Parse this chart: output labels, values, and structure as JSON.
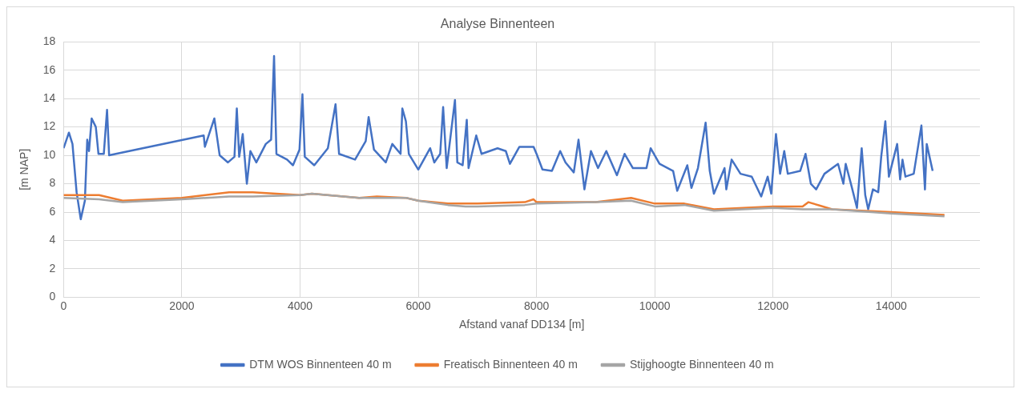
{
  "chart_data": {
    "type": "line",
    "title": "Analyse Binnenteen",
    "xlabel": "Afstand vanaf DD134 [m]",
    "ylabel": "[m NAP]",
    "xlim": [
      0,
      15500
    ],
    "xticks": [
      0,
      2000,
      4000,
      6000,
      8000,
      10000,
      12000,
      14000
    ],
    "ylim": [
      0,
      18
    ],
    "yticks": [
      0,
      2,
      4,
      6,
      8,
      10,
      12,
      14,
      16,
      18
    ],
    "grid": true,
    "legend": "bottom",
    "marker": "none",
    "line_style": "solid",
    "series": [
      {
        "name": "DTM WOS Binnenteen 40 m",
        "color": "#4472c4",
        "x": [
          0,
          90,
          150,
          220,
          290,
          360,
          400,
          430,
          475,
          545,
          590,
          680,
          735,
          770,
          2370,
          2390,
          2550,
          2640,
          2780,
          2890,
          2930,
          2970,
          3030,
          3100,
          3160,
          3260,
          3420,
          3510,
          3560,
          3600,
          3780,
          3880,
          3990,
          4040,
          4080,
          4240,
          4470,
          4600,
          4660,
          4930,
          5110,
          5160,
          5250,
          5450,
          5560,
          5700,
          5730,
          5790,
          5840,
          6000,
          6200,
          6270,
          6370,
          6420,
          6480,
          6620,
          6660,
          6750,
          6820,
          6850,
          6980,
          7070,
          7340,
          7480,
          7550,
          7710,
          7950,
          8010,
          8100,
          8260,
          8400,
          8490,
          8630,
          8710,
          8810,
          8920,
          9040,
          9180,
          9360,
          9490,
          9630,
          9860,
          9930,
          10080,
          10310,
          10380,
          10550,
          10620,
          10730,
          10860,
          10930,
          11000,
          11180,
          11210,
          11300,
          11450,
          11640,
          11800,
          11910,
          11970,
          12050,
          12120,
          12190,
          12250,
          12460,
          12550,
          12640,
          12730,
          12870,
          13100,
          13190,
          13230,
          13330,
          13420,
          13500,
          13560,
          13610,
          13690,
          13780,
          13830,
          13900,
          13960,
          14100,
          14150,
          14190,
          14240,
          14380,
          14510,
          14570,
          14600,
          14700
        ],
        "values": [
          10.5,
          11.6,
          10.8,
          7.4,
          5.5,
          6.8,
          11.1,
          10.3,
          12.6,
          12.0,
          10.1,
          10.1,
          13.2,
          10.0,
          11.4,
          10.6,
          12.6,
          10.0,
          9.5,
          9.9,
          13.3,
          9.9,
          11.5,
          8.0,
          10.3,
          9.5,
          10.8,
          11.1,
          17.0,
          10.1,
          9.7,
          9.3,
          10.4,
          14.3,
          9.9,
          9.3,
          10.5,
          13.6,
          10.1,
          9.7,
          11.0,
          12.7,
          10.4,
          9.5,
          10.8,
          10.1,
          13.3,
          12.4,
          10.1,
          9.0,
          10.5,
          9.5,
          10.1,
          13.4,
          9.1,
          13.9,
          9.5,
          9.3,
          12.5,
          9.1,
          11.4,
          10.1,
          10.5,
          10.3,
          9.4,
          10.6,
          10.6,
          10.0,
          9.0,
          8.9,
          10.3,
          9.5,
          8.8,
          11.1,
          7.6,
          10.3,
          9.1,
          10.3,
          8.6,
          10.1,
          9.1,
          9.1,
          10.5,
          9.4,
          8.9,
          7.5,
          9.3,
          7.7,
          9.1,
          12.3,
          8.9,
          7.3,
          9.1,
          7.6,
          9.7,
          8.7,
          8.5,
          7.1,
          8.5,
          7.3,
          11.5,
          8.7,
          10.3,
          8.7,
          8.9,
          10.1,
          8.0,
          7.6,
          8.7,
          9.4,
          8.0,
          9.4,
          7.8,
          6.3,
          10.5,
          7.2,
          6.2,
          7.6,
          7.4,
          9.9,
          12.4,
          8.5,
          10.8,
          8.3,
          9.7,
          8.5,
          8.7,
          12.1,
          7.6,
          10.8,
          8.9
        ]
      },
      {
        "name": "Freatisch Binnenteen 40 m",
        "color": "#ed7d31",
        "x": [
          0,
          600,
          1000,
          2000,
          2800,
          3200,
          4000,
          4200,
          5000,
          5300,
          5800,
          6000,
          6500,
          6800,
          7000,
          7800,
          7950,
          8000,
          9000,
          9600,
          10000,
          10500,
          11000,
          12000,
          12500,
          12600,
          13000,
          14000,
          14900
        ],
        "values": [
          7.2,
          7.2,
          6.8,
          7.0,
          7.4,
          7.4,
          7.2,
          7.3,
          7.0,
          7.1,
          7.0,
          6.8,
          6.6,
          6.6,
          6.6,
          6.7,
          6.9,
          6.7,
          6.7,
          7.0,
          6.6,
          6.6,
          6.2,
          6.4,
          6.4,
          6.7,
          6.2,
          6.0,
          5.8
        ]
      },
      {
        "name": "Stijghoogte Binnenteen 40 m",
        "color": "#a5a5a5",
        "x": [
          0,
          600,
          1000,
          2000,
          2800,
          3200,
          4000,
          4200,
          5000,
          5300,
          5800,
          6000,
          6500,
          6800,
          7000,
          7800,
          8000,
          9000,
          9600,
          10000,
          10500,
          11000,
          12000,
          12500,
          13000,
          14000,
          14900
        ],
        "values": [
          7.0,
          6.9,
          6.7,
          6.9,
          7.1,
          7.1,
          7.2,
          7.3,
          7.0,
          7.0,
          7.0,
          6.8,
          6.5,
          6.4,
          6.4,
          6.5,
          6.6,
          6.7,
          6.8,
          6.4,
          6.5,
          6.1,
          6.3,
          6.2,
          6.2,
          5.9,
          5.7
        ]
      }
    ]
  }
}
